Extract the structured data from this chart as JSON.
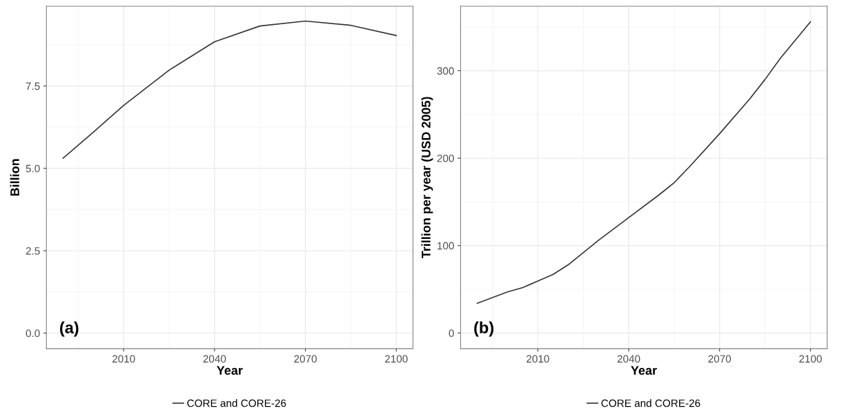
{
  "chart_data": [
    {
      "type": "line",
      "xlabel": "Year",
      "ylabel": "Billion",
      "annotations": [
        "(a)"
      ],
      "x": [
        1990,
        2000,
        2010,
        2025,
        2040,
        2055,
        2070,
        2085,
        2100
      ],
      "series": [
        {
          "name": "CORE and CORE-26",
          "color": "#333333",
          "values": [
            5.31,
            6.1,
            6.91,
            7.98,
            8.84,
            9.32,
            9.47,
            9.34,
            9.03
          ]
        }
      ],
      "xlim": [
        1984.5,
        2105.5
      ],
      "xticks": [
        2010,
        2040,
        2070,
        2100
      ],
      "ylim": [
        -0.47,
        9.92
      ],
      "yticks": [
        {
          "value": 0,
          "label": "0.0"
        },
        2.5,
        {
          "value": 5,
          "label": "5.0"
        },
        7.5
      ],
      "grid": true,
      "legend": "bottom",
      "line_style": "solid",
      "marker": "none"
    },
    {
      "type": "line",
      "xlabel": "Year",
      "ylabel": "Trillion per year (USD 2005)",
      "annotations": [
        "(b)"
      ],
      "x": [
        1990,
        2000,
        2005,
        2010,
        2015,
        2020,
        2030,
        2040,
        2050,
        2055,
        2060,
        2070,
        2080,
        2085,
        2090,
        2100
      ],
      "series": [
        {
          "name": "CORE and CORE-26",
          "color": "#333333",
          "values": [
            34,
            47,
            52,
            59.5,
            67,
            78,
            106,
            132,
            158,
            172,
            190,
            228,
            268,
            290,
            314,
            356
          ]
        }
      ],
      "xlim": [
        1984.5,
        2105.5
      ],
      "xticks": [
        2010,
        2040,
        2070,
        2100
      ],
      "ylim": [
        -17.8,
        373.8
      ],
      "yticks": [
        0,
        100,
        200,
        300
      ],
      "grid": true,
      "legend": "bottom",
      "line_style": "solid",
      "marker": "none"
    }
  ]
}
